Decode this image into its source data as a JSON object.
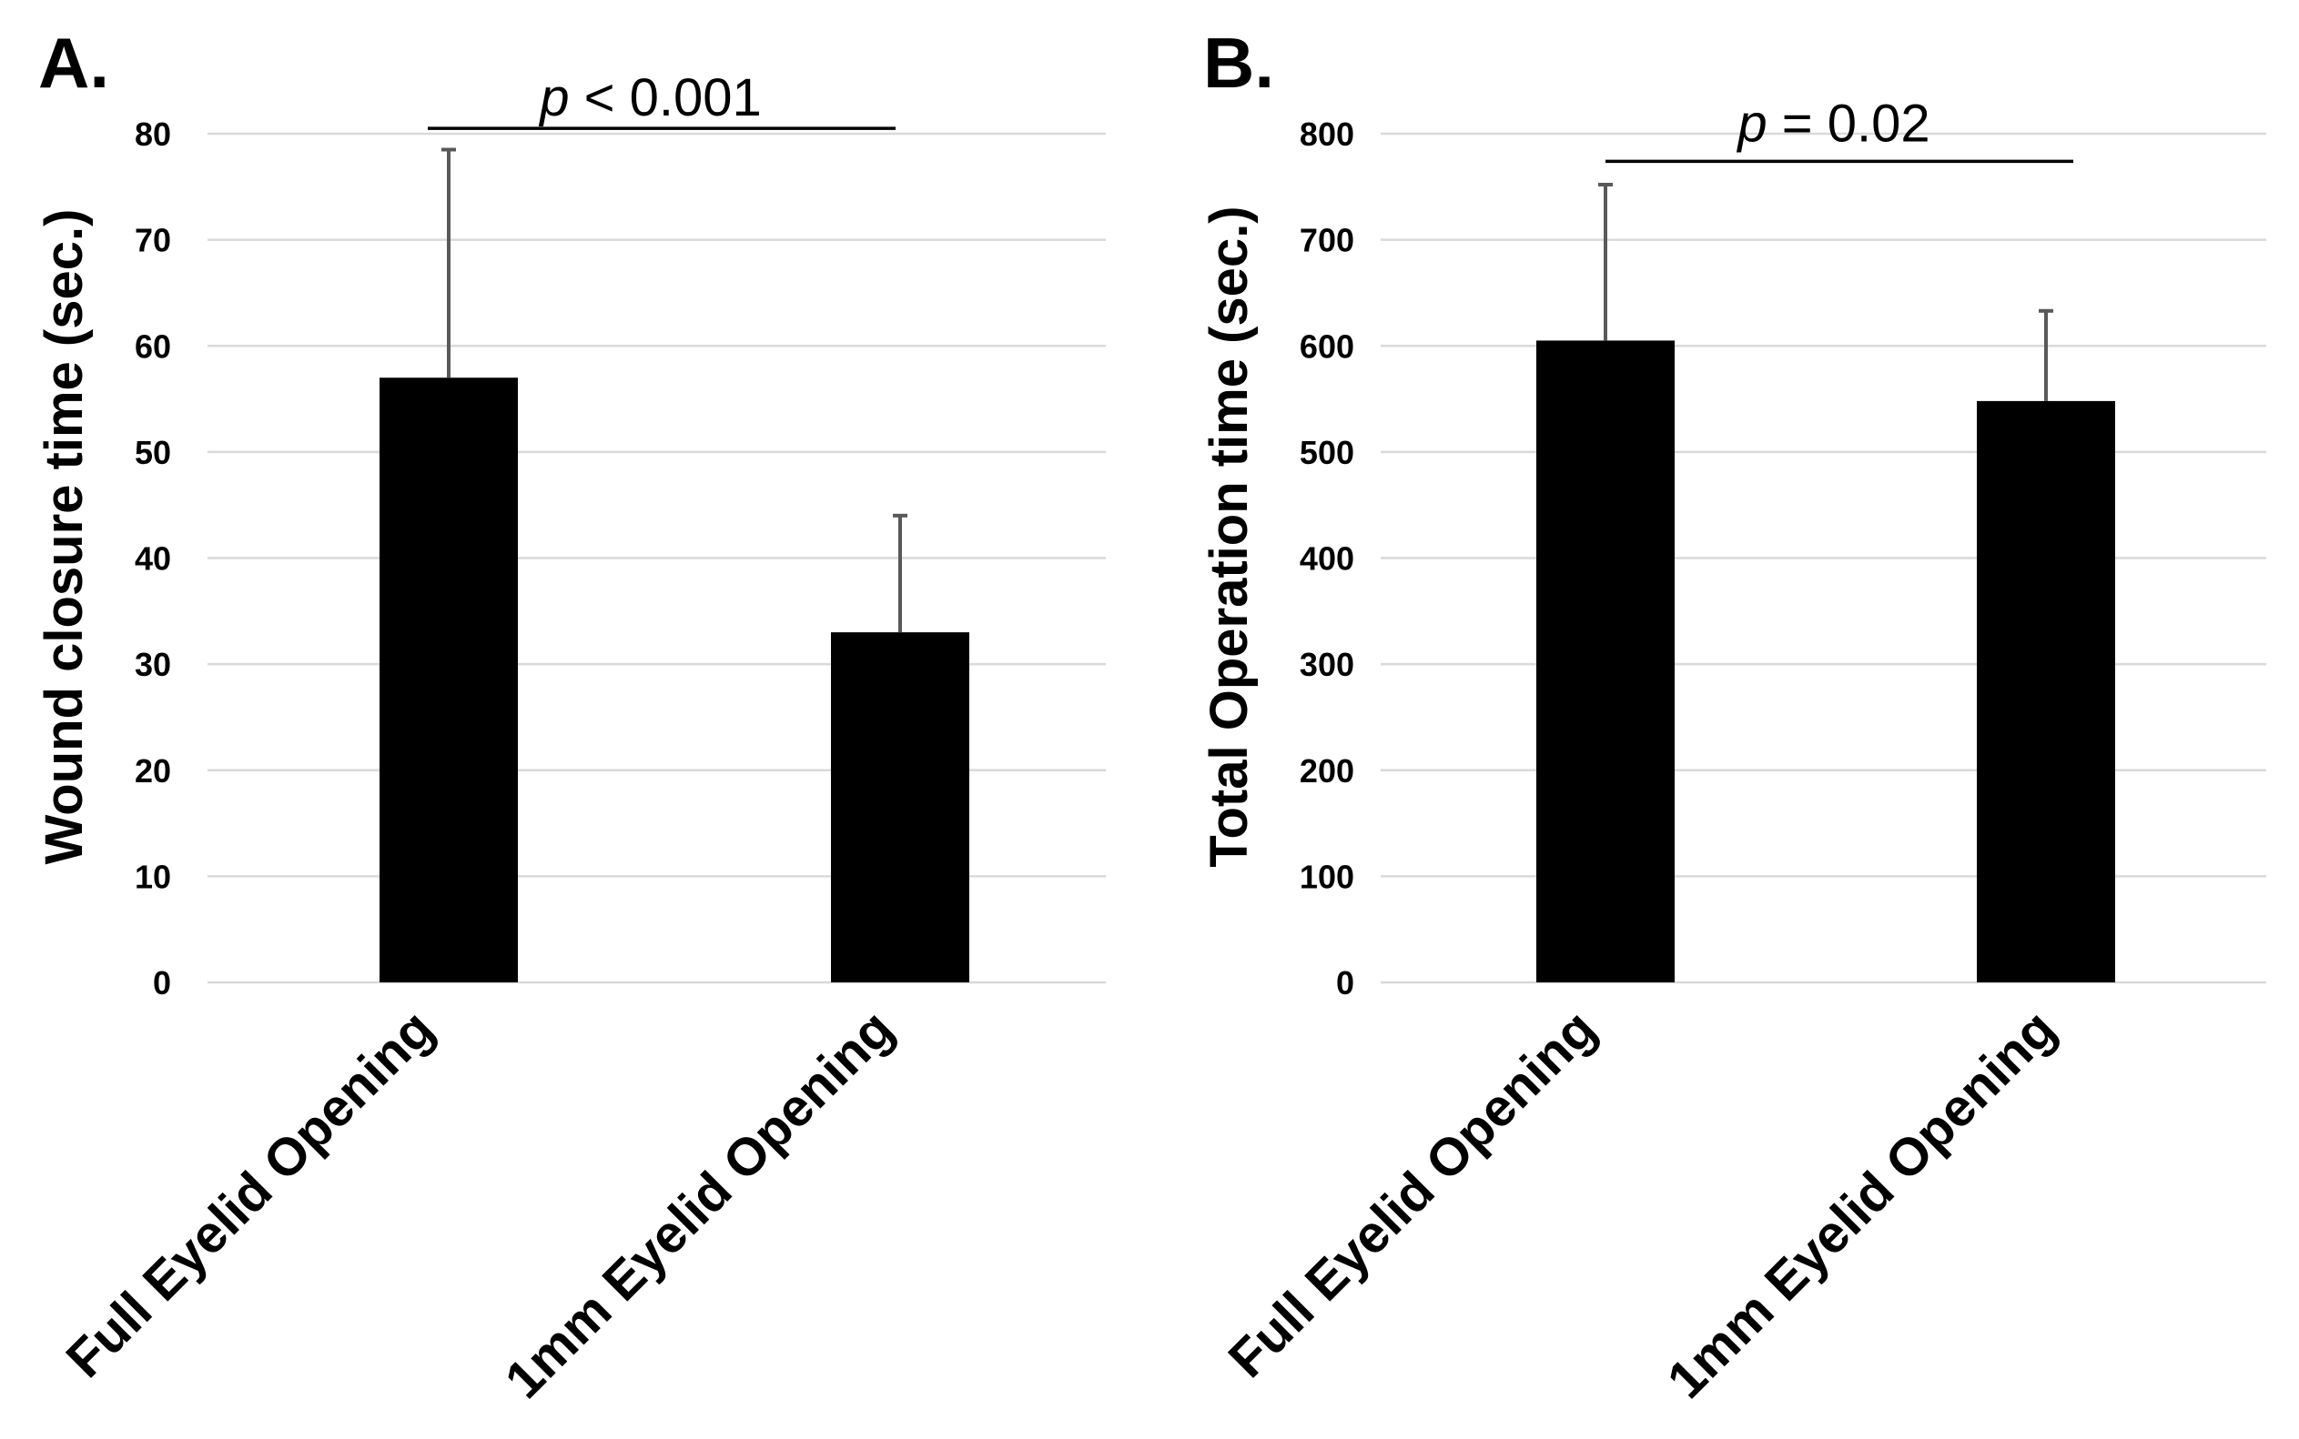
{
  "chart_data": [
    {
      "type": "bar",
      "panel_label": "A.",
      "title": "",
      "xlabel": "",
      "ylabel": "Wound closure time (sec.)",
      "ylim": [
        0,
        80
      ],
      "yticks": [
        "0",
        "10",
        "20",
        "30",
        "40",
        "50",
        "60",
        "70",
        "80"
      ],
      "ytick_values": [
        0,
        10,
        20,
        30,
        40,
        50,
        60,
        70,
        80
      ],
      "categories": [
        "Full Eyelid Opening",
        "1mm Eyelid Opening"
      ],
      "values": [
        57,
        33
      ],
      "error_upper": [
        78.5,
        44
      ],
      "grid": true,
      "bar_color": "#000000",
      "significance": {
        "prefix": "p",
        "text": " < 0.001",
        "y": 80.5
      }
    },
    {
      "type": "bar",
      "panel_label": "B.",
      "title": "",
      "xlabel": "",
      "ylabel": "Total Operation time (sec.)",
      "ylim": [
        0,
        800
      ],
      "yticks": [
        "0",
        "100",
        "200",
        "300",
        "400",
        "500",
        "600",
        "700",
        "800"
      ],
      "ytick_values": [
        0,
        100,
        200,
        300,
        400,
        500,
        600,
        700,
        800
      ],
      "categories": [
        "Full Eyelid Opening",
        "1mm Eyelid Opening"
      ],
      "values": [
        605,
        548
      ],
      "error_upper": [
        752,
        633
      ],
      "grid": true,
      "bar_color": "#000000",
      "significance": {
        "prefix": "p",
        "text": " = 0.02",
        "y": 774
      }
    }
  ]
}
